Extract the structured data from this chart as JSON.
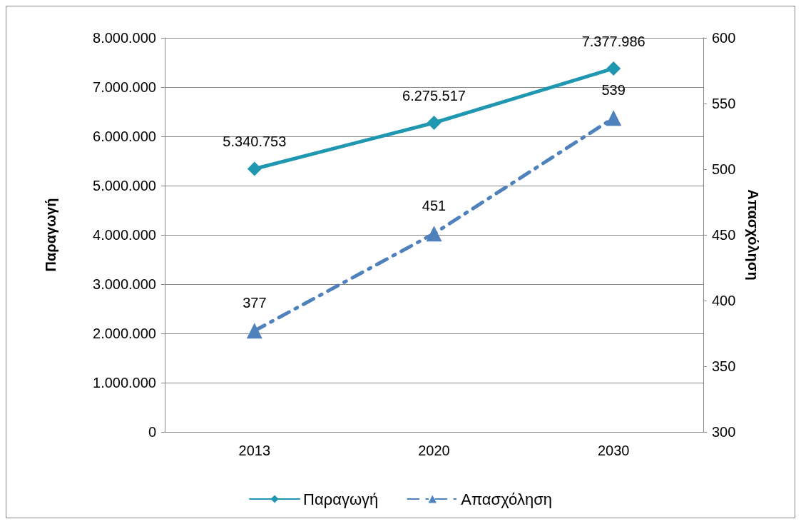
{
  "chart_data": {
    "type": "line",
    "categories": [
      "2013",
      "2020",
      "2030"
    ],
    "ylabel": "Παραγωγή",
    "y2label": "Απασχόληση",
    "ylim": [
      0,
      8000000
    ],
    "yticks": [
      {
        "value": 0,
        "label": "0"
      },
      {
        "value": 1000000,
        "label": "1.000.000"
      },
      {
        "value": 2000000,
        "label": "2.000.000"
      },
      {
        "value": 3000000,
        "label": "3.000.000"
      },
      {
        "value": 4000000,
        "label": "4.000.000"
      },
      {
        "value": 5000000,
        "label": "5.000.000"
      },
      {
        "value": 6000000,
        "label": "6.000.000"
      },
      {
        "value": 7000000,
        "label": "7.000.000"
      },
      {
        "value": 8000000,
        "label": "8.000.000"
      }
    ],
    "y2lim": [
      300,
      600
    ],
    "y2ticks": [
      300,
      350,
      400,
      450,
      500,
      550,
      600
    ],
    "grid": "y",
    "legend": "bottom",
    "series": [
      {
        "name": "Παραγωγή",
        "color": "#1f97b0",
        "values": [
          5340753,
          6275517,
          7377986
        ],
        "value_labels": [
          "5.340.753",
          "6.275.517",
          "7.377.986"
        ],
        "marker": "diamond",
        "line_style": "solid"
      },
      {
        "name": "Απασχόληση",
        "color": "#4f81bd",
        "axis": "y2",
        "values": [
          377,
          451,
          539
        ],
        "value_labels": [
          "377",
          "451",
          "539"
        ],
        "marker": "triangle",
        "line_style": "dashed"
      }
    ]
  }
}
